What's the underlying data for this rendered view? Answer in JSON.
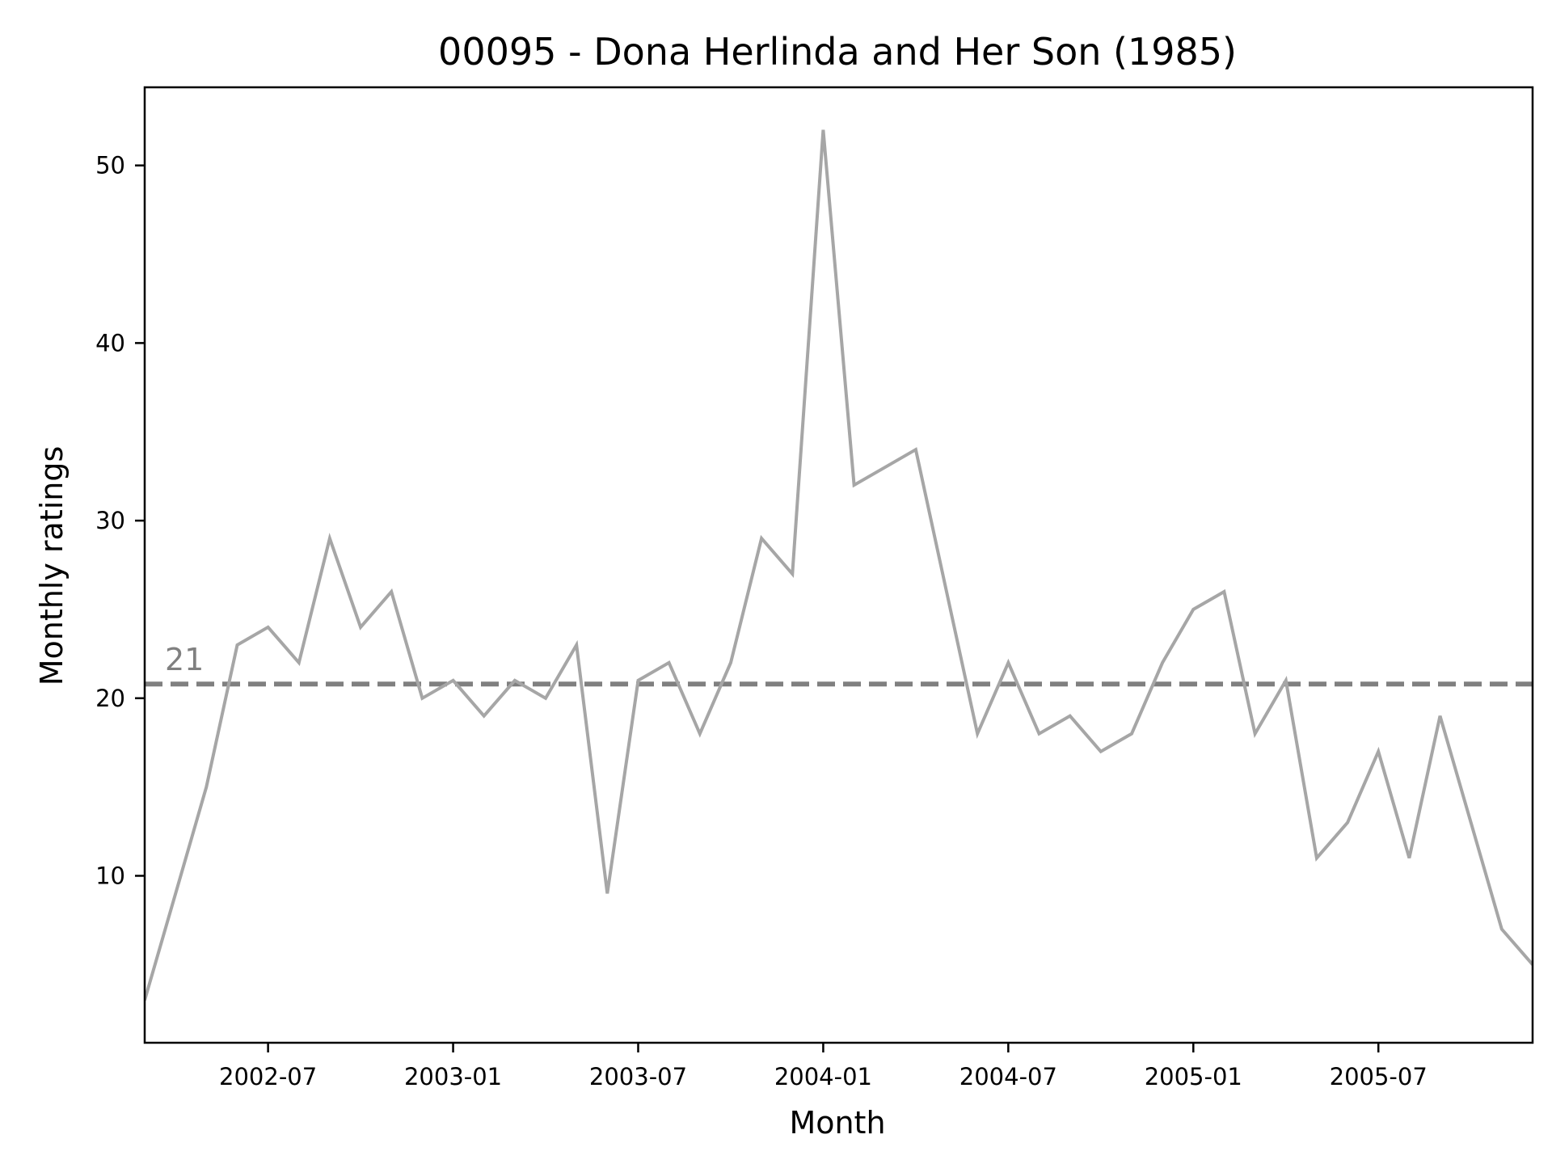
{
  "chart_data": {
    "type": "line",
    "title": "00095 - Dona Herlinda and Her Son (1985)",
    "xlabel": "Month",
    "ylabel": "Monthly ratings",
    "x_tick_labels": [
      "2002-07",
      "2003-01",
      "2003-07",
      "2004-01",
      "2004-07",
      "2005-01",
      "2005-07"
    ],
    "y_ticks": [
      10,
      20,
      30,
      40,
      50
    ],
    "xlim": [
      "2002-03",
      "2005-12"
    ],
    "ylim": [
      0.6,
      54.4
    ],
    "grid": false,
    "series": [
      {
        "color": "#a6a6a6",
        "x": [
          "2002-03",
          "2002-04",
          "2002-05",
          "2002-06",
          "2002-07",
          "2002-08",
          "2002-09",
          "2002-10",
          "2002-11",
          "2002-12",
          "2003-01",
          "2003-02",
          "2003-03",
          "2003-04",
          "2003-05",
          "2003-06",
          "2003-07",
          "2003-08",
          "2003-09",
          "2003-10",
          "2003-11",
          "2003-12",
          "2004-01",
          "2004-02",
          "2004-03",
          "2004-04",
          "2004-05",
          "2004-06",
          "2004-07",
          "2004-08",
          "2004-09",
          "2004-10",
          "2004-11",
          "2004-12",
          "2005-01",
          "2005-02",
          "2005-03",
          "2005-04",
          "2005-05",
          "2005-06",
          "2005-07",
          "2005-08",
          "2005-09",
          "2005-10",
          "2005-11",
          "2005-12"
        ],
        "values": [
          3,
          9,
          15,
          23,
          24,
          22,
          29,
          24,
          26,
          20,
          21,
          19,
          21,
          20,
          23,
          9,
          21,
          22,
          18,
          22,
          29,
          27,
          52,
          32,
          33,
          34,
          26,
          18,
          22,
          18,
          19,
          17,
          18,
          22,
          25,
          26,
          18,
          21,
          11,
          13,
          17,
          11,
          19,
          13,
          7,
          5
        ]
      }
    ],
    "reference_line": {
      "value": 20.8,
      "label": "21",
      "style": "dashed",
      "color": "#808080"
    }
  }
}
